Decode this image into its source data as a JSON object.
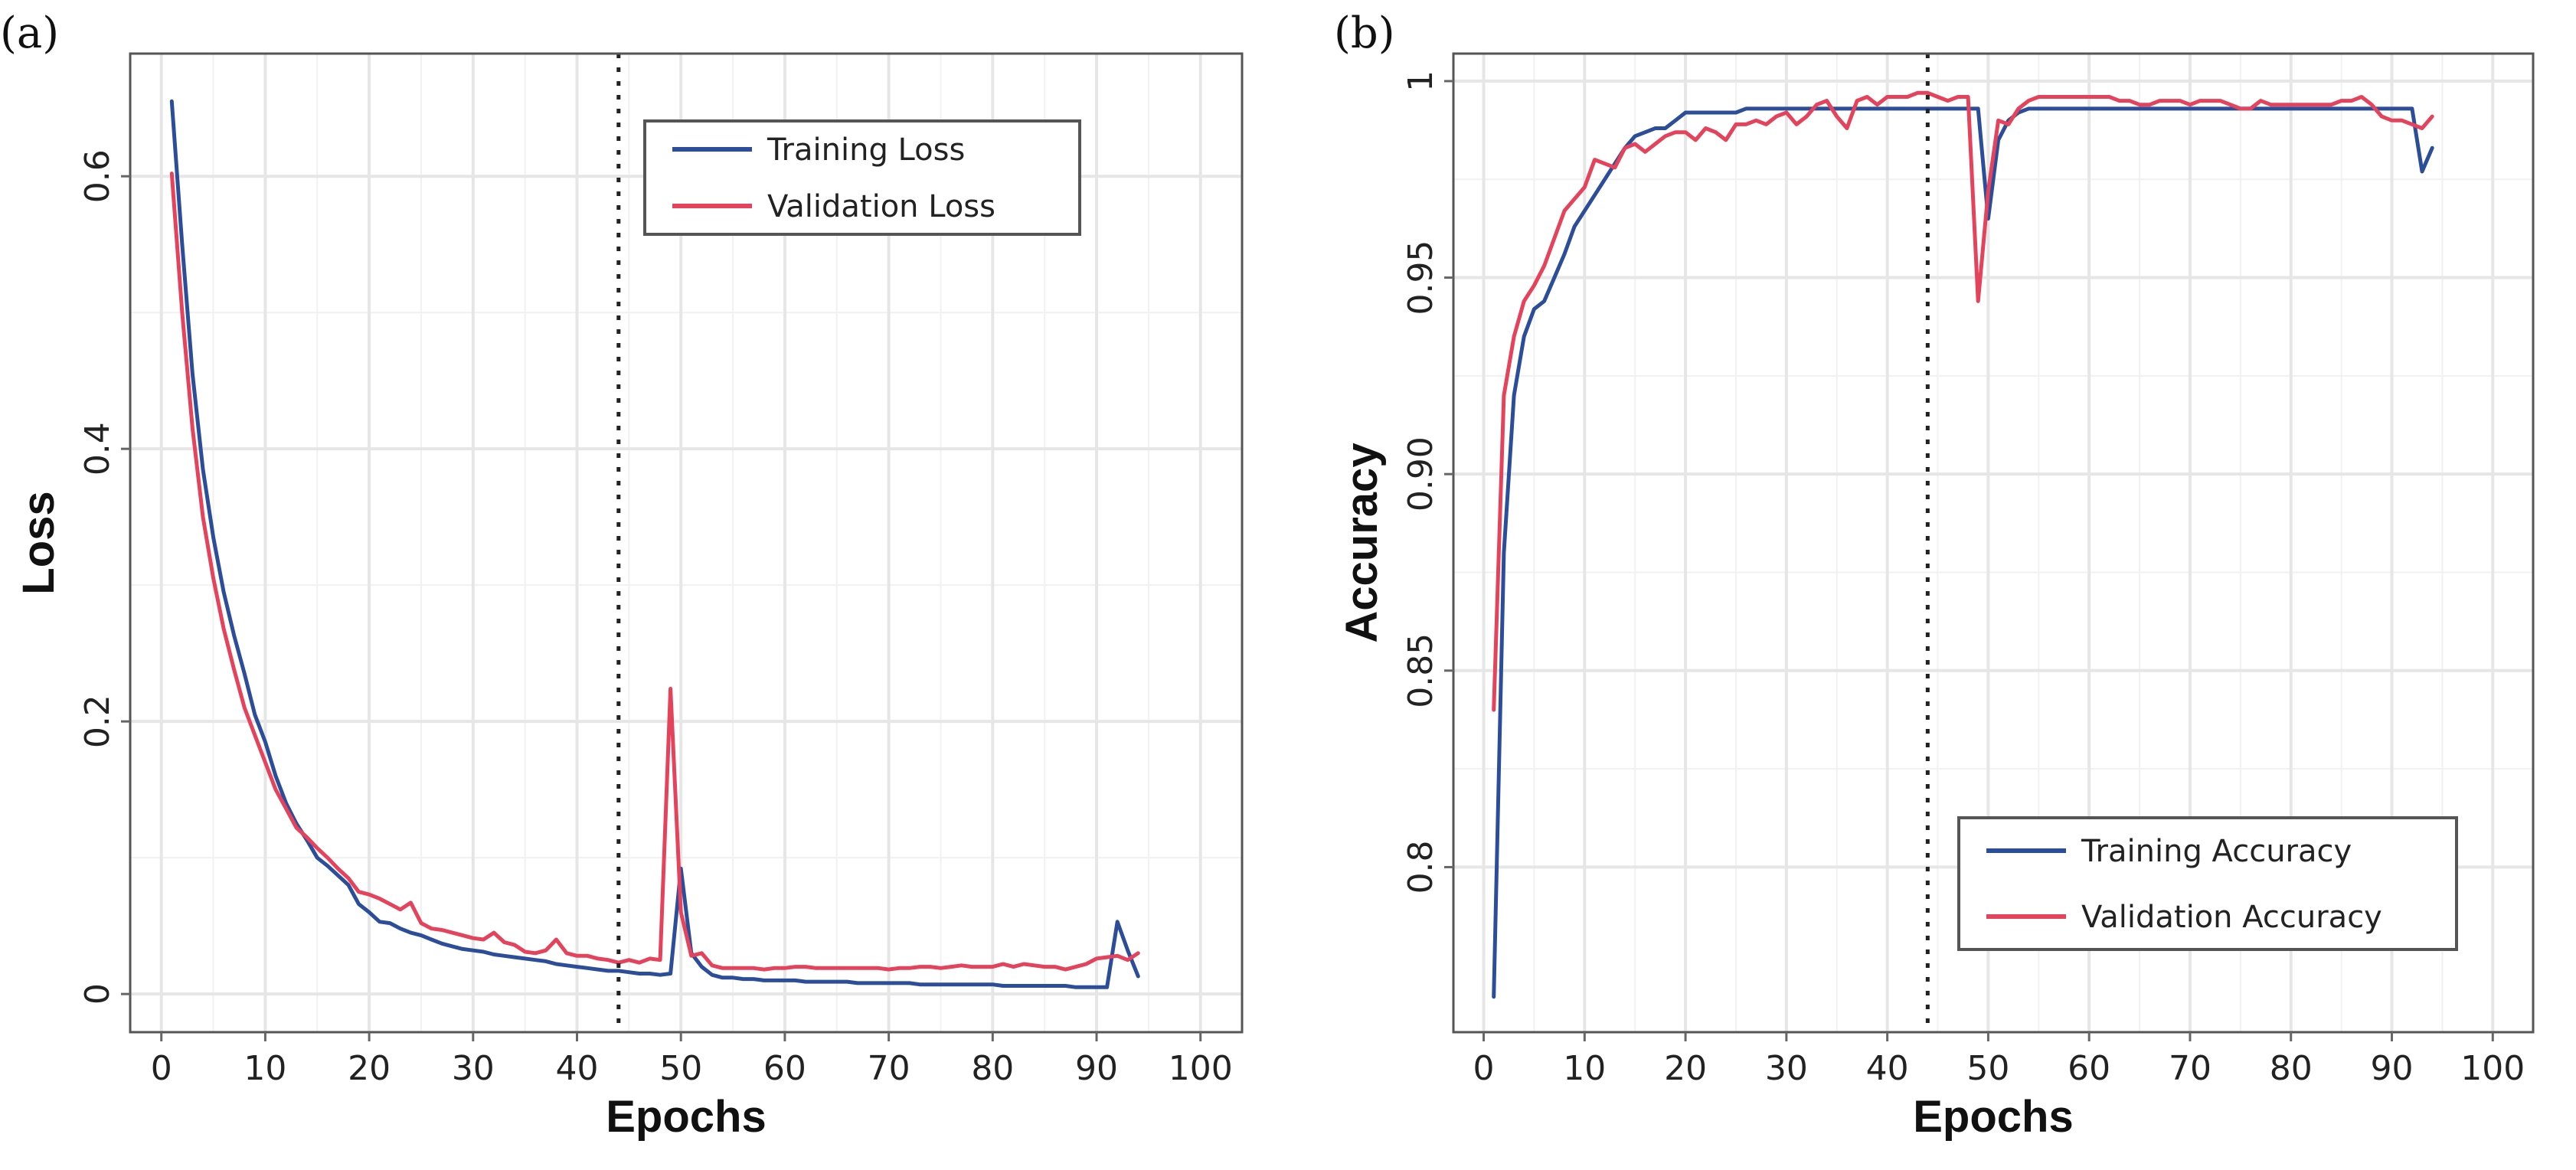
{
  "colors": {
    "training": "#2c4e9a",
    "validation": "#e5425b"
  },
  "chart_data": [
    {
      "type": "line",
      "panel": "(a)",
      "xlabel": "Epochs",
      "ylabel": "Loss",
      "xlim": [
        -3,
        104
      ],
      "ylim": [
        -0.028,
        0.69
      ],
      "xticks": [
        0,
        10,
        20,
        30,
        40,
        50,
        60,
        70,
        80,
        90,
        100
      ],
      "yticks": [
        0,
        0.2,
        0.4,
        0.6
      ],
      "ytick_labels": [
        "0",
        "0.2",
        "0.4",
        "0.6"
      ],
      "vline": 44,
      "legend_position": "top-right",
      "series": [
        {
          "name": "Training Loss",
          "x": [
            1,
            2,
            3,
            4,
            5,
            6,
            7,
            8,
            9,
            10,
            11,
            12,
            13,
            14,
            15,
            16,
            17,
            18,
            19,
            20,
            21,
            22,
            23,
            24,
            25,
            26,
            27,
            28,
            29,
            30,
            31,
            32,
            33,
            34,
            35,
            36,
            37,
            38,
            39,
            40,
            41,
            42,
            43,
            44,
            45,
            46,
            47,
            48,
            49,
            50,
            51,
            52,
            53,
            54,
            55,
            56,
            57,
            58,
            59,
            60,
            61,
            62,
            63,
            64,
            65,
            66,
            67,
            68,
            69,
            70,
            71,
            72,
            73,
            74,
            75,
            76,
            77,
            78,
            79,
            80,
            81,
            82,
            83,
            84,
            85,
            86,
            87,
            88,
            89,
            90,
            91,
            92,
            93,
            94
          ],
          "y": [
            0.655,
            0.55,
            0.455,
            0.385,
            0.335,
            0.295,
            0.263,
            0.235,
            0.205,
            0.185,
            0.16,
            0.14,
            0.125,
            0.113,
            0.1,
            0.094,
            0.087,
            0.08,
            0.066,
            0.06,
            0.053,
            0.052,
            0.048,
            0.045,
            0.043,
            0.04,
            0.037,
            0.035,
            0.033,
            0.032,
            0.031,
            0.029,
            0.028,
            0.027,
            0.026,
            0.025,
            0.024,
            0.022,
            0.021,
            0.02,
            0.019,
            0.018,
            0.017,
            0.017,
            0.016,
            0.015,
            0.015,
            0.014,
            0.015,
            0.092,
            0.03,
            0.02,
            0.014,
            0.012,
            0.012,
            0.011,
            0.011,
            0.01,
            0.01,
            0.01,
            0.01,
            0.009,
            0.009,
            0.009,
            0.009,
            0.009,
            0.008,
            0.008,
            0.008,
            0.008,
            0.008,
            0.008,
            0.007,
            0.007,
            0.007,
            0.007,
            0.007,
            0.007,
            0.007,
            0.007,
            0.006,
            0.006,
            0.006,
            0.006,
            0.006,
            0.006,
            0.006,
            0.005,
            0.005,
            0.005,
            0.005,
            0.053,
            0.032,
            0.013
          ]
        },
        {
          "name": "Validation Loss",
          "x": [
            1,
            2,
            3,
            4,
            5,
            6,
            7,
            8,
            9,
            10,
            11,
            12,
            13,
            14,
            15,
            16,
            17,
            18,
            19,
            20,
            21,
            22,
            23,
            24,
            25,
            26,
            27,
            28,
            29,
            30,
            31,
            32,
            33,
            34,
            35,
            36,
            37,
            38,
            39,
            40,
            41,
            42,
            43,
            44,
            45,
            46,
            47,
            48,
            49,
            50,
            51,
            52,
            53,
            54,
            55,
            56,
            57,
            58,
            59,
            60,
            61,
            62,
            63,
            64,
            65,
            66,
            67,
            68,
            69,
            70,
            71,
            72,
            73,
            74,
            75,
            76,
            77,
            78,
            79,
            80,
            81,
            82,
            83,
            84,
            85,
            86,
            87,
            88,
            89,
            90,
            91,
            92,
            93,
            94
          ],
          "y": [
            0.602,
            0.5,
            0.415,
            0.35,
            0.305,
            0.268,
            0.238,
            0.21,
            0.19,
            0.17,
            0.15,
            0.136,
            0.122,
            0.115,
            0.107,
            0.1,
            0.092,
            0.085,
            0.075,
            0.073,
            0.07,
            0.066,
            0.062,
            0.067,
            0.052,
            0.048,
            0.047,
            0.045,
            0.043,
            0.041,
            0.04,
            0.045,
            0.038,
            0.036,
            0.031,
            0.03,
            0.032,
            0.04,
            0.03,
            0.028,
            0.028,
            0.026,
            0.025,
            0.023,
            0.025,
            0.023,
            0.026,
            0.025,
            0.224,
            0.06,
            0.028,
            0.03,
            0.021,
            0.019,
            0.019,
            0.019,
            0.019,
            0.018,
            0.019,
            0.019,
            0.02,
            0.02,
            0.019,
            0.019,
            0.019,
            0.019,
            0.019,
            0.019,
            0.019,
            0.018,
            0.019,
            0.019,
            0.02,
            0.02,
            0.019,
            0.02,
            0.021,
            0.02,
            0.02,
            0.02,
            0.022,
            0.02,
            0.022,
            0.021,
            0.02,
            0.02,
            0.018,
            0.02,
            0.022,
            0.026,
            0.027,
            0.028,
            0.025,
            0.03
          ]
        }
      ]
    },
    {
      "type": "line",
      "panel": "(b)",
      "xlabel": "Epochs",
      "ylabel": "Accuracy",
      "xlim": [
        -3,
        104
      ],
      "ylim": [
        0.758,
        1.007
      ],
      "xticks": [
        0,
        10,
        20,
        30,
        40,
        50,
        60,
        70,
        80,
        90,
        100
      ],
      "yticks": [
        0.8,
        0.85,
        0.9,
        0.95,
        1.0
      ],
      "ytick_labels": [
        "0.8",
        "0.85",
        "0.90",
        "0.95",
        "1"
      ],
      "vline": 44,
      "legend_position": "bottom-right",
      "series": [
        {
          "name": "Training Accuracy",
          "x": [
            1,
            2,
            3,
            4,
            5,
            6,
            7,
            8,
            9,
            10,
            11,
            12,
            13,
            14,
            15,
            16,
            17,
            18,
            19,
            20,
            21,
            22,
            23,
            24,
            25,
            26,
            27,
            28,
            29,
            30,
            31,
            32,
            33,
            34,
            35,
            36,
            37,
            38,
            39,
            40,
            41,
            42,
            43,
            44,
            45,
            46,
            47,
            48,
            49,
            50,
            51,
            52,
            53,
            54,
            55,
            56,
            57,
            58,
            59,
            60,
            61,
            62,
            63,
            64,
            65,
            66,
            67,
            68,
            69,
            70,
            71,
            72,
            73,
            74,
            75,
            76,
            77,
            78,
            79,
            80,
            81,
            82,
            83,
            84,
            85,
            86,
            87,
            88,
            89,
            90,
            91,
            92,
            93,
            94
          ],
          "y": [
            0.767,
            0.88,
            0.92,
            0.935,
            0.942,
            0.944,
            0.95,
            0.956,
            0.963,
            0.967,
            0.971,
            0.975,
            0.979,
            0.983,
            0.986,
            0.987,
            0.988,
            0.988,
            0.99,
            0.992,
            0.992,
            0.992,
            0.992,
            0.992,
            0.992,
            0.993,
            0.993,
            0.993,
            0.993,
            0.993,
            0.993,
            0.993,
            0.993,
            0.993,
            0.993,
            0.993,
            0.993,
            0.993,
            0.993,
            0.993,
            0.993,
            0.993,
            0.993,
            0.993,
            0.993,
            0.993,
            0.993,
            0.993,
            0.993,
            0.965,
            0.985,
            0.99,
            0.992,
            0.993,
            0.993,
            0.993,
            0.993,
            0.993,
            0.993,
            0.993,
            0.993,
            0.993,
            0.993,
            0.993,
            0.993,
            0.993,
            0.993,
            0.993,
            0.993,
            0.993,
            0.993,
            0.993,
            0.993,
            0.993,
            0.993,
            0.993,
            0.993,
            0.993,
            0.993,
            0.993,
            0.993,
            0.993,
            0.993,
            0.993,
            0.993,
            0.993,
            0.993,
            0.993,
            0.993,
            0.993,
            0.993,
            0.993,
            0.977,
            0.983
          ]
        },
        {
          "name": "Validation Accuracy",
          "x": [
            1,
            2,
            3,
            4,
            5,
            6,
            7,
            8,
            9,
            10,
            11,
            12,
            13,
            14,
            15,
            16,
            17,
            18,
            19,
            20,
            21,
            22,
            23,
            24,
            25,
            26,
            27,
            28,
            29,
            30,
            31,
            32,
            33,
            34,
            35,
            36,
            37,
            38,
            39,
            40,
            41,
            42,
            43,
            44,
            45,
            46,
            47,
            48,
            49,
            50,
            51,
            52,
            53,
            54,
            55,
            56,
            57,
            58,
            59,
            60,
            61,
            62,
            63,
            64,
            65,
            66,
            67,
            68,
            69,
            70,
            71,
            72,
            73,
            74,
            75,
            76,
            77,
            78,
            79,
            80,
            81,
            82,
            83,
            84,
            85,
            86,
            87,
            88,
            89,
            90,
            91,
            92,
            93,
            94
          ],
          "y": [
            0.84,
            0.92,
            0.935,
            0.944,
            0.948,
            0.953,
            0.96,
            0.967,
            0.97,
            0.973,
            0.98,
            0.979,
            0.978,
            0.983,
            0.984,
            0.982,
            0.984,
            0.986,
            0.987,
            0.987,
            0.985,
            0.988,
            0.987,
            0.985,
            0.989,
            0.989,
            0.99,
            0.989,
            0.991,
            0.992,
            0.989,
            0.991,
            0.994,
            0.995,
            0.991,
            0.988,
            0.995,
            0.996,
            0.994,
            0.996,
            0.996,
            0.996,
            0.997,
            0.997,
            0.996,
            0.995,
            0.996,
            0.996,
            0.944,
            0.972,
            0.99,
            0.989,
            0.993,
            0.995,
            0.996,
            0.996,
            0.996,
            0.996,
            0.996,
            0.996,
            0.996,
            0.996,
            0.995,
            0.995,
            0.994,
            0.994,
            0.995,
            0.995,
            0.995,
            0.994,
            0.995,
            0.995,
            0.995,
            0.994,
            0.993,
            0.993,
            0.995,
            0.994,
            0.994,
            0.994,
            0.994,
            0.994,
            0.994,
            0.994,
            0.995,
            0.995,
            0.996,
            0.994,
            0.991,
            0.99,
            0.99,
            0.989,
            0.988,
            0.991
          ]
        }
      ]
    }
  ]
}
